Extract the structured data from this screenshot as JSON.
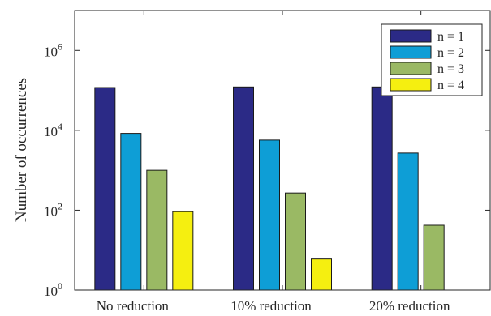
{
  "chart_data": {
    "type": "bar",
    "title": "",
    "xlabel": "",
    "ylabel": "Number of occurrences",
    "yscale": "log",
    "ylim": [
      1,
      10000000
    ],
    "ytick_values": [
      1,
      100,
      10000,
      1000000
    ],
    "ytick_labels": [
      {
        "base": "10",
        "exp": "0"
      },
      {
        "base": "10",
        "exp": "2"
      },
      {
        "base": "10",
        "exp": "4"
      },
      {
        "base": "10",
        "exp": "6"
      }
    ],
    "grid": false,
    "legend_position": "top-right",
    "categories": [
      "No reduction",
      "10% reduction",
      "20% reduction"
    ],
    "series": [
      {
        "name": "n = 1",
        "color": "#2b2a86",
        "values": [
          118000,
          122000,
          122000
        ]
      },
      {
        "name": "n = 2",
        "color": "#0e9ed6",
        "values": [
          8400,
          5700,
          2700
        ]
      },
      {
        "name": "n = 3",
        "color": "#9ab964",
        "values": [
          1000,
          270,
          42
        ]
      },
      {
        "name": "n = 4",
        "color": "#f5ef10",
        "values": [
          92,
          6,
          null
        ]
      }
    ]
  }
}
